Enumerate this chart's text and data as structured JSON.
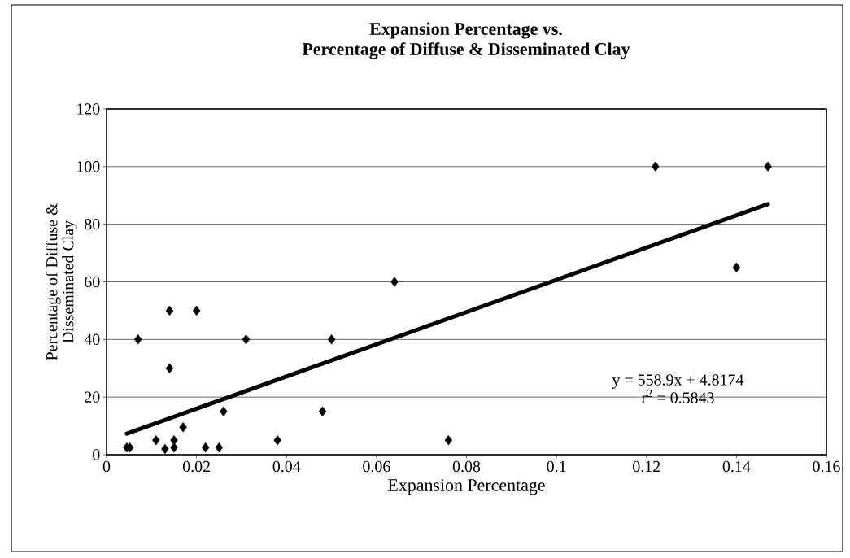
{
  "chart_data": {
    "type": "scatter",
    "title": "Expansion Percentage vs.",
    "subtitle": "Percentage of Diffuse & Disseminated Clay",
    "xlabel": "Expansion Percentage",
    "ylabel": "Percentage of Diffuse & Disseminated Clay",
    "series": [
      {
        "color": "#000000",
        "marker": "diamond",
        "x": [
          0.0045,
          0.0052,
          0.007,
          0.011,
          0.013,
          0.014,
          0.014,
          0.015,
          0.015,
          0.017,
          0.02,
          0.022,
          0.025,
          0.026,
          0.031,
          0.038,
          0.048,
          0.05,
          0.064,
          0.076,
          0.122,
          0.14,
          0.147
        ],
        "values": [
          2.5,
          2.5,
          40,
          5,
          2,
          50,
          30,
          2.5,
          5,
          9.5,
          50,
          2.5,
          2.5,
          15,
          40,
          5,
          15,
          40,
          60,
          5,
          100,
          65,
          100
        ]
      },
      {
        "type": "line",
        "color": "#000000",
        "marker": "none",
        "x": [
          0.0045,
          0.147
        ],
        "values": [
          7.3,
          87
        ]
      }
    ],
    "annotations": [
      "y = 558.9x + 4.8174",
      "r$^{2}$ = 0.5843"
    ],
    "xlim": [
      0,
      0.16
    ],
    "ylim": [
      0,
      120
    ],
    "xticks": [
      0,
      0.02,
      0.04,
      0.06,
      0.08,
      0.1,
      0.12,
      0.14,
      0.16
    ],
    "yticks": [
      0,
      20,
      40,
      60,
      80,
      100,
      120
    ],
    "grid": "y"
  }
}
